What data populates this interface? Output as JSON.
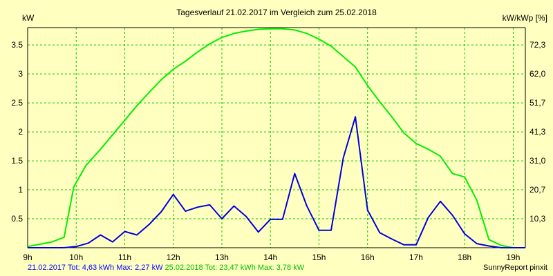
{
  "chart_data": {
    "type": "line",
    "title": "Tagesverlauf 21.02.2017 im Vergleich zum 25.02.2018",
    "ylabel_left": "kW",
    "ylabel_right": "kW/kWp [%]",
    "x_ticks": [
      "9h",
      "10h",
      "11h",
      "12h",
      "13h",
      "14h",
      "15h",
      "16h",
      "17h",
      "18h",
      "19h"
    ],
    "xlim": [
      9.0,
      19.25
    ],
    "ylim": [
      0,
      3.8
    ],
    "y_ticks_left": [
      "0.5",
      "1",
      "1.5",
      "2",
      "2.5",
      "3",
      "3.5"
    ],
    "y_ticks_right": [
      "10,3",
      "20,7",
      "31,0",
      "41,3",
      "51,7",
      "62,0",
      "72,3"
    ],
    "grid": true,
    "colors": {
      "background": "#ffffc0",
      "plot": "#ffffc0",
      "grid": "#00cc00",
      "green": "#00ee00",
      "blue": "#0000dd"
    },
    "series": [
      {
        "name": "21.02.2017",
        "color": "#0000dd",
        "points": [
          [
            9.0,
            0.0
          ],
          [
            9.25,
            0.0
          ],
          [
            9.5,
            0.0
          ],
          [
            9.75,
            0.0
          ],
          [
            10.0,
            0.02
          ],
          [
            10.25,
            0.08
          ],
          [
            10.5,
            0.22
          ],
          [
            10.75,
            0.1
          ],
          [
            11.0,
            0.28
          ],
          [
            11.25,
            0.22
          ],
          [
            11.5,
            0.4
          ],
          [
            11.75,
            0.62
          ],
          [
            12.0,
            0.92
          ],
          [
            12.25,
            0.63
          ],
          [
            12.5,
            0.7
          ],
          [
            12.75,
            0.74
          ],
          [
            13.0,
            0.5
          ],
          [
            13.25,
            0.72
          ],
          [
            13.5,
            0.54
          ],
          [
            13.75,
            0.27
          ],
          [
            14.0,
            0.49
          ],
          [
            14.25,
            0.49
          ],
          [
            14.5,
            1.28
          ],
          [
            14.75,
            0.72
          ],
          [
            15.0,
            0.3
          ],
          [
            15.25,
            0.3
          ],
          [
            15.5,
            1.55
          ],
          [
            15.75,
            2.26
          ],
          [
            16.0,
            0.65
          ],
          [
            16.25,
            0.26
          ],
          [
            16.5,
            0.15
          ],
          [
            16.75,
            0.05
          ],
          [
            17.0,
            0.05
          ],
          [
            17.25,
            0.52
          ],
          [
            17.5,
            0.8
          ],
          [
            17.75,
            0.56
          ],
          [
            18.0,
            0.24
          ],
          [
            18.25,
            0.07
          ],
          [
            18.5,
            0.03
          ],
          [
            18.75,
            0.0
          ],
          [
            19.0,
            0.0
          ],
          [
            19.25,
            0.0
          ]
        ]
      },
      {
        "name": "25.02.2018",
        "color": "#00ee00",
        "points": [
          [
            9.0,
            0.02
          ],
          [
            9.25,
            0.06
          ],
          [
            9.5,
            0.1
          ],
          [
            9.75,
            0.18
          ],
          [
            9.95,
            1.05
          ],
          [
            10.2,
            1.42
          ],
          [
            10.5,
            1.7
          ],
          [
            10.75,
            1.95
          ],
          [
            11.0,
            2.2
          ],
          [
            11.25,
            2.45
          ],
          [
            11.5,
            2.68
          ],
          [
            11.75,
            2.9
          ],
          [
            12.0,
            3.08
          ],
          [
            12.25,
            3.22
          ],
          [
            12.5,
            3.38
          ],
          [
            12.75,
            3.52
          ],
          [
            13.0,
            3.63
          ],
          [
            13.25,
            3.7
          ],
          [
            13.5,
            3.74
          ],
          [
            13.75,
            3.77
          ],
          [
            14.0,
            3.78
          ],
          [
            14.25,
            3.78
          ],
          [
            14.5,
            3.76
          ],
          [
            14.75,
            3.7
          ],
          [
            15.0,
            3.6
          ],
          [
            15.25,
            3.48
          ],
          [
            15.5,
            3.3
          ],
          [
            15.75,
            3.12
          ],
          [
            16.0,
            2.8
          ],
          [
            16.25,
            2.52
          ],
          [
            16.5,
            2.26
          ],
          [
            16.75,
            1.98
          ],
          [
            17.0,
            1.8
          ],
          [
            17.25,
            1.7
          ],
          [
            17.5,
            1.58
          ],
          [
            17.75,
            1.28
          ],
          [
            18.0,
            1.22
          ],
          [
            18.25,
            0.82
          ],
          [
            18.5,
            0.14
          ],
          [
            18.75,
            0.04
          ],
          [
            19.0,
            0.0
          ],
          [
            19.25,
            0.0
          ]
        ]
      }
    ]
  },
  "footer": {
    "series1": "21.02.2017 Tot: 4,63 kWh Max: 2,27 kW",
    "series2": "25.02.2018 Tot: 23,47 kWh Max: 3,78 kW",
    "brand": "SunnyReport pinxit"
  }
}
